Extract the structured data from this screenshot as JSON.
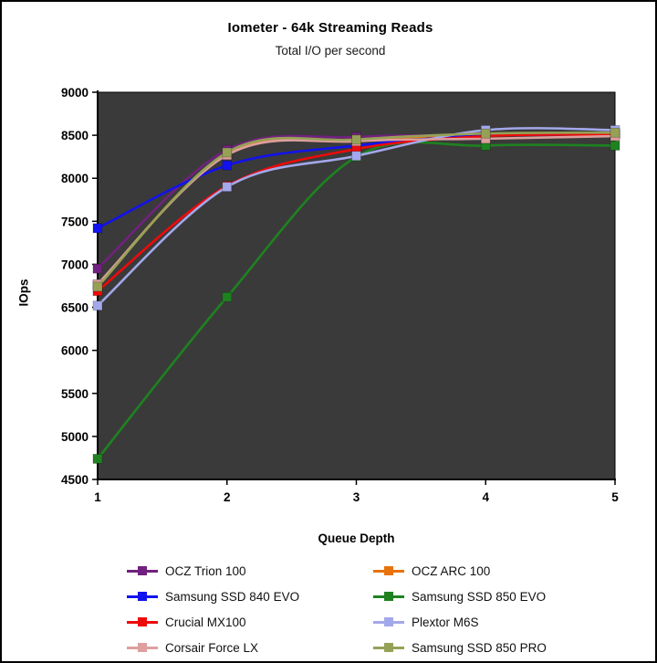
{
  "title": "Iometer - 64k Streaming Reads",
  "subtitle": "Total I/O per second",
  "chart_data": {
    "type": "line",
    "x": [
      1,
      2,
      3,
      4,
      5
    ],
    "xlabel": "Queue Depth",
    "ylabel": "IOps",
    "ylim": [
      4500,
      9000
    ],
    "ytick_step": 500,
    "y_tick_labels": [
      "4500",
      "5000",
      "5500",
      "6000",
      "6500",
      "7000",
      "7500",
      "8000",
      "8500",
      "9000"
    ],
    "x_tick_labels": [
      "1",
      "2",
      "3",
      "4",
      "5"
    ],
    "grid": false,
    "line_style": "smooth",
    "marker": "square",
    "plot_background": "#3A3A3A",
    "legend_position": "bottom-two-columns",
    "series": [
      {
        "name": "OCZ Trion 100",
        "color": "#71217F",
        "values": [
          6950,
          8330,
          8480,
          8500,
          8510
        ]
      },
      {
        "name": "OCZ ARC 100",
        "color": "#E8720C",
        "values": [
          6760,
          8290,
          8450,
          8500,
          8520
        ]
      },
      {
        "name": "Samsung SSD 840 EVO",
        "color": "#1212EE",
        "values": [
          7420,
          8150,
          8380,
          8500,
          8520
        ]
      },
      {
        "name": "Samsung SSD 850 EVO",
        "color": "#1E8220",
        "values": [
          4740,
          6620,
          8250,
          8380,
          8380
        ]
      },
      {
        "name": "Crucial MX100",
        "color": "#EE0A0A",
        "values": [
          6690,
          7910,
          8340,
          8490,
          8510
        ]
      },
      {
        "name": "Plextor M6S",
        "color": "#A3A8EA",
        "values": [
          6520,
          7900,
          8260,
          8560,
          8560
        ]
      },
      {
        "name": "Corsair Force LX",
        "color": "#DE9F9E",
        "values": [
          6770,
          8270,
          8430,
          8460,
          8490
        ]
      },
      {
        "name": "Samsung SSD 850 PRO",
        "color": "#96A156",
        "values": [
          6740,
          8300,
          8450,
          8520,
          8530
        ]
      }
    ]
  }
}
